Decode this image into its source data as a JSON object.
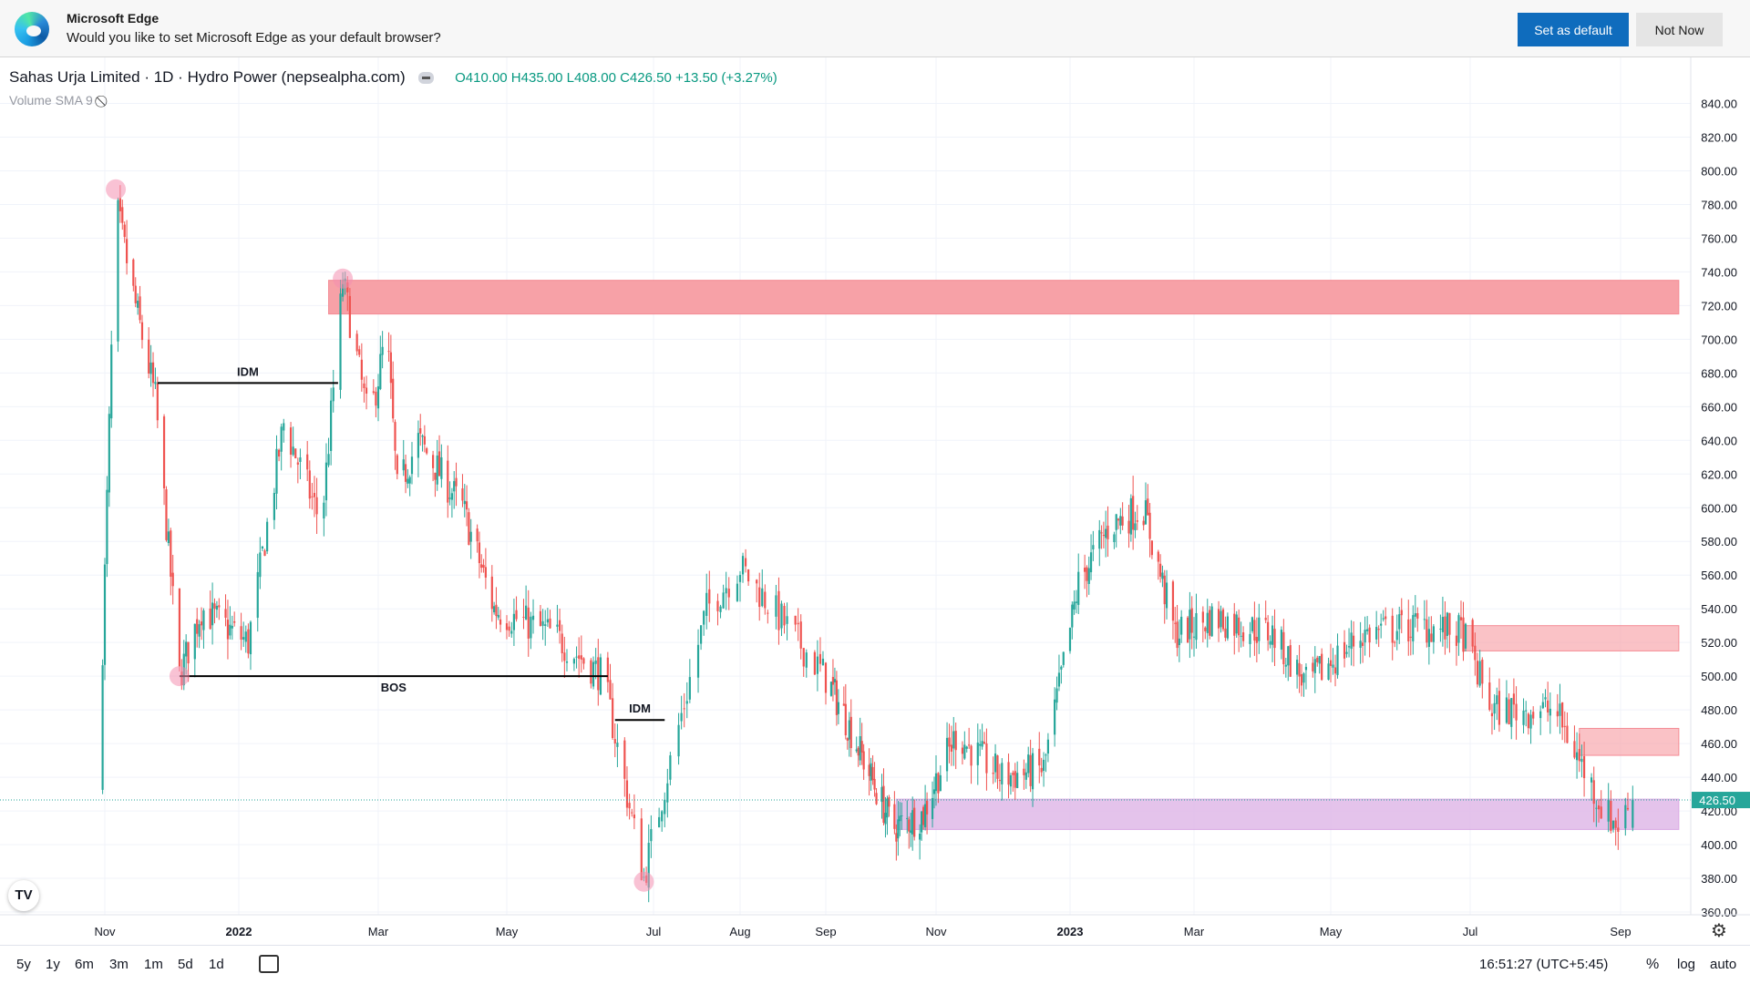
{
  "infobar": {
    "title": "Microsoft Edge",
    "message": "Would you like to set Microsoft Edge as your default browser?",
    "primary_button": "Set as default",
    "secondary_button": "Not Now"
  },
  "chart_header": {
    "symbol_line": "Sahas Urja Limited · 1D · Hydro Power (nepsealpha.com)",
    "ohlc": "O410.00 H435.00 L408.00 C426.50 +13.50 (+3.27%)",
    "volume_label": "Volume SMA 9"
  },
  "bottom_bar": {
    "ranges": [
      "5y",
      "1y",
      "6m",
      "3m",
      "1m",
      "5d",
      "1d"
    ],
    "clock": "16:51:27 (UTC+5:45)",
    "percent": "%",
    "log": "log",
    "auto": "auto"
  },
  "colors": {
    "up": "#26a69a",
    "down": "#ef5350",
    "supply_zone": "#f7a1a7",
    "demand_zone": "#dfb8e8",
    "price_label": "#26a69a"
  },
  "chart_data": {
    "type": "candlestick",
    "title": "Sahas Urja Limited · 1D · Hydro Power (nepsealpha.com)",
    "ylim": [
      355,
      845
    ],
    "y_ticks": [
      "840.00",
      "820.00",
      "800.00",
      "780.00",
      "760.00",
      "740.00",
      "720.00",
      "700.00",
      "680.00",
      "660.00",
      "640.00",
      "620.00",
      "600.00",
      "580.00",
      "560.00",
      "540.00",
      "520.00",
      "500.00",
      "480.00",
      "460.00",
      "440.00",
      "420.00",
      "400.00",
      "380.00",
      "360.00"
    ],
    "x_ticks": [
      {
        "label": "Nov",
        "date": "2021-11-01",
        "bold": false
      },
      {
        "label": "2022",
        "date": "2022-01-01",
        "bold": true
      },
      {
        "label": "Mar",
        "date": "2022-03-01",
        "bold": false
      },
      {
        "label": "May",
        "date": "2022-05-01",
        "bold": false
      },
      {
        "label": "Jul",
        "date": "2022-07-01",
        "bold": false
      },
      {
        "label": "Aug",
        "date": "2022-08-01",
        "bold": false
      },
      {
        "label": "Sep",
        "date": "2022-09-01",
        "bold": false
      },
      {
        "label": "Nov",
        "date": "2022-11-01",
        "bold": false
      },
      {
        "label": "2023",
        "date": "2023-01-01",
        "bold": true
      },
      {
        "label": "Mar",
        "date": "2023-03-01",
        "bold": false
      },
      {
        "label": "May",
        "date": "2023-05-01",
        "bold": false
      },
      {
        "label": "Jul",
        "date": "2023-07-01",
        "bold": false
      },
      {
        "label": "Sep",
        "date": "2023-09-01",
        "bold": false
      }
    ],
    "last_price": "426.50",
    "last_close": 426.5,
    "swing_path": [
      [
        "2021-10-29",
        430
      ],
      [
        "2021-11-06",
        780
      ],
      [
        "2021-11-15",
        720
      ],
      [
        "2021-11-24",
        665
      ],
      [
        "2021-12-05",
        500
      ],
      [
        "2021-12-15",
        540
      ],
      [
        "2022-01-05",
        520
      ],
      [
        "2022-01-20",
        650
      ],
      [
        "2022-02-05",
        590
      ],
      [
        "2022-02-14",
        735
      ],
      [
        "2022-02-25",
        650
      ],
      [
        "2022-03-05",
        705
      ],
      [
        "2022-03-10",
        610
      ],
      [
        "2022-03-20",
        640
      ],
      [
        "2022-04-10",
        600
      ],
      [
        "2022-04-25",
        540
      ],
      [
        "2022-05-20",
        525
      ],
      [
        "2022-06-10",
        500
      ],
      [
        "2022-06-27",
        380
      ],
      [
        "2022-07-05",
        435
      ],
      [
        "2022-07-20",
        540
      ],
      [
        "2022-08-01",
        565
      ],
      [
        "2022-08-20",
        525
      ],
      [
        "2022-09-10",
        480
      ],
      [
        "2022-10-08",
        410
      ],
      [
        "2022-10-25",
        418
      ],
      [
        "2022-11-10",
        465
      ],
      [
        "2022-12-01",
        440
      ],
      [
        "2022-12-20",
        445
      ],
      [
        "2023-01-05",
        555
      ],
      [
        "2023-01-20",
        590
      ],
      [
        "2023-02-05",
        600
      ],
      [
        "2023-02-20",
        525
      ],
      [
        "2023-03-10",
        535
      ],
      [
        "2023-04-05",
        525
      ],
      [
        "2023-04-20",
        495
      ],
      [
        "2023-05-15",
        525
      ],
      [
        "2023-06-10",
        530
      ],
      [
        "2023-06-28",
        525
      ],
      [
        "2023-07-10",
        480
      ],
      [
        "2023-08-05",
        480
      ],
      [
        "2023-08-25",
        420
      ],
      [
        "2023-09-01",
        410
      ],
      [
        "2023-09-05",
        426.5
      ]
    ],
    "zones": [
      {
        "type": "supply",
        "from": "2022-02-08",
        "to": "2023-09-25",
        "low": 715,
        "high": 735
      },
      {
        "type": "supply",
        "from": "2023-06-28",
        "to": "2023-09-25",
        "low": 515,
        "high": 530
      },
      {
        "type": "supply",
        "from": "2023-08-15",
        "to": "2023-09-25",
        "low": 453,
        "high": 469
      },
      {
        "type": "demand",
        "from": "2022-10-10",
        "to": "2023-09-25",
        "low": 409,
        "high": 427
      }
    ],
    "structure_lines": [
      {
        "label": "IDM",
        "from": "2021-11-25",
        "to": "2022-02-12",
        "y": 674
      },
      {
        "label": "BOS",
        "from": "2021-12-05",
        "to": "2022-06-12",
        "y": 500
      },
      {
        "label": "IDM",
        "from": "2022-06-15",
        "to": "2022-07-05",
        "y": 474
      }
    ],
    "swing_markers": [
      {
        "date": "2021-11-06",
        "y": 789
      },
      {
        "date": "2022-02-14",
        "y": 736
      },
      {
        "date": "2021-12-05",
        "y": 500
      },
      {
        "date": "2022-06-27",
        "y": 378
      }
    ]
  }
}
